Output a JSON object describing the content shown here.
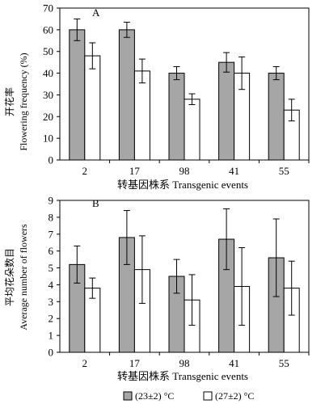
{
  "colors": {
    "series_a_fill": "#a6a6a6",
    "series_b_fill": "#ffffff",
    "stroke": "#000000"
  },
  "chart_data": [
    {
      "type": "bar",
      "panel_label": "A",
      "categories": [
        "2",
        "17",
        "98",
        "41",
        "55"
      ],
      "ylabel_cn": "开花率",
      "ylabel_en": "Flowering frequency (%)",
      "xlabel": "转基因株系 Transgenic events",
      "ylim": [
        0,
        70
      ],
      "yticks": [
        0,
        10,
        20,
        30,
        40,
        50,
        60,
        70
      ],
      "series": [
        {
          "name": "(23±2) °C",
          "values": [
            60,
            60,
            40,
            45,
            40
          ],
          "errors": [
            5,
            3.5,
            3,
            4.5,
            3
          ]
        },
        {
          "name": "(27±2) °C",
          "values": [
            48,
            41,
            28,
            40,
            23
          ],
          "errors": [
            6,
            5.5,
            2.5,
            7.5,
            5
          ]
        }
      ]
    },
    {
      "type": "bar",
      "panel_label": "B",
      "categories": [
        "2",
        "17",
        "98",
        "41",
        "55"
      ],
      "ylabel_cn": "平均花朵数目",
      "ylabel_en": "Average number of flowers",
      "xlabel": "转基因株系 Transgenic events",
      "ylim": [
        0,
        9
      ],
      "yticks": [
        0,
        1,
        2,
        3,
        4,
        5,
        6,
        7,
        8,
        9
      ],
      "series": [
        {
          "name": "(23±2) °C",
          "values": [
            5.2,
            6.8,
            4.5,
            6.7,
            5.6
          ],
          "errors": [
            1.1,
            1.6,
            1.0,
            1.8,
            2.3
          ]
        },
        {
          "name": "(27±2) °C",
          "values": [
            3.8,
            4.9,
            3.1,
            3.9,
            3.8
          ],
          "errors": [
            0.6,
            2.0,
            1.5,
            2.3,
            1.6
          ]
        }
      ]
    }
  ],
  "legend": {
    "items": [
      {
        "label": "(23±2) °C"
      },
      {
        "label": "(27±2) °C"
      }
    ]
  }
}
